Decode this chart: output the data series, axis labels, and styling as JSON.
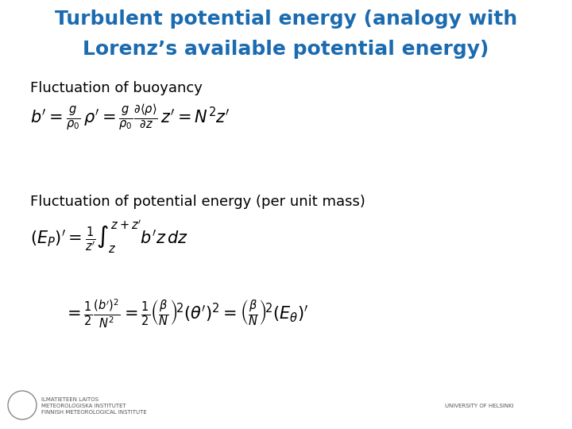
{
  "title_line1": "Turbulent potential energy (analogy with",
  "title_line2": "Lorenz’s available potential energy)",
  "title_color": "#1B6BB0",
  "bg_color": "#FFFFFF",
  "label1": "Fluctuation of buoyancy",
  "label2": "Fluctuation of potential energy (per unit mass)",
  "eq1": "b' = \\frac{g}{\\rho_0}\\,\\rho' = \\frac{g}{\\rho_0}\\frac{\\partial\\langle\\rho\\rangle}{\\partial z}\\,z' = N^2 z'",
  "eq2": "(E_P)' = \\frac{1}{z'}\\int_{z}^{z+z'} b'z\\,dz",
  "eq3": "= \\frac{1}{2}\\frac{(b')^2}{N^2} = \\frac{1}{2}\\left(\\frac{\\beta}{N}\\right)^{\\!2} (\\theta')^2 = \\left(\\frac{\\beta}{N}\\right)^{\\!2} (E_{\\theta})'",
  "label_fontsize": 13,
  "eq1_fontsize": 15,
  "eq2_fontsize": 15,
  "eq3_fontsize": 15,
  "title_fontsize": 18,
  "footer_fmi": "ILMATIETEEN LAITOS\nMETEOROLOGISKA INSTITUTET\nFINNISH METEOROLOGICAL INSTITUTE",
  "footer_uni": "UNIVERSITY OF HELSINKI",
  "footer_fontsize": 5
}
